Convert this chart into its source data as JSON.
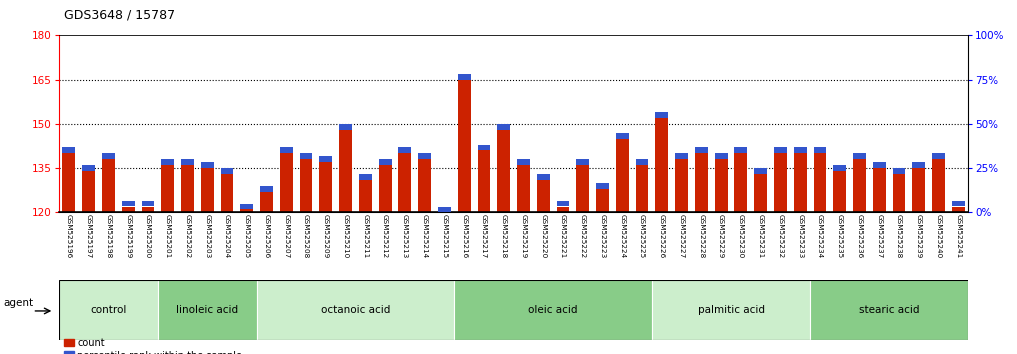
{
  "title": "GDS3648 / 15787",
  "samples": [
    "GSM525196",
    "GSM525197",
    "GSM525198",
    "GSM525199",
    "GSM525200",
    "GSM525201",
    "GSM525202",
    "GSM525203",
    "GSM525204",
    "GSM525205",
    "GSM525206",
    "GSM525207",
    "GSM525208",
    "GSM525209",
    "GSM525210",
    "GSM525211",
    "GSM525212",
    "GSM525213",
    "GSM525214",
    "GSM525215",
    "GSM525216",
    "GSM525217",
    "GSM525218",
    "GSM525219",
    "GSM525220",
    "GSM525221",
    "GSM525222",
    "GSM525223",
    "GSM525224",
    "GSM525225",
    "GSM525226",
    "GSM525227",
    "GSM525228",
    "GSM525229",
    "GSM525230",
    "GSM525231",
    "GSM525232",
    "GSM525233",
    "GSM525234",
    "GSM525235",
    "GSM525236",
    "GSM525237",
    "GSM525238",
    "GSM525239",
    "GSM525240",
    "GSM525241"
  ],
  "red_values": [
    140,
    134,
    138,
    122,
    122,
    136,
    136,
    135,
    133,
    121,
    127,
    140,
    138,
    137,
    148,
    131,
    136,
    140,
    138,
    120,
    165,
    141,
    148,
    136,
    131,
    122,
    136,
    128,
    145,
    136,
    152,
    138,
    140,
    138,
    140,
    133,
    140,
    140,
    140,
    134,
    138,
    135,
    133,
    135,
    138,
    122
  ],
  "blue_values": [
    2,
    2,
    2,
    2,
    2,
    2,
    2,
    2,
    2,
    2,
    2,
    2,
    2,
    2,
    2,
    2,
    2,
    2,
    2,
    2,
    2,
    2,
    2,
    2,
    2,
    2,
    2,
    2,
    2,
    2,
    2,
    2,
    2,
    2,
    2,
    2,
    2,
    2,
    2,
    2,
    2,
    2,
    2,
    2,
    2,
    2
  ],
  "groups": [
    {
      "label": "control",
      "start": 0,
      "end": 5
    },
    {
      "label": "linoleic acid",
      "start": 5,
      "end": 10
    },
    {
      "label": "octanoic acid",
      "start": 10,
      "end": 20
    },
    {
      "label": "oleic acid",
      "start": 20,
      "end": 30
    },
    {
      "label": "palmitic acid",
      "start": 30,
      "end": 38
    },
    {
      "label": "stearic acid",
      "start": 38,
      "end": 46
    }
  ],
  "ylim_left": [
    120,
    180
  ],
  "ylim_right": [
    0,
    100
  ],
  "yticks_left": [
    120,
    135,
    150,
    165,
    180
  ],
  "yticks_right": [
    0,
    25,
    50,
    75,
    100
  ],
  "bar_color_red": "#cc2200",
  "bar_color_blue": "#3355cc",
  "bar_width": 0.65,
  "plot_bg_color": "#ffffff",
  "label_bg_color": "#d8d8d8",
  "group_color_light": "#cceecc",
  "group_color_dark": "#88cc88"
}
